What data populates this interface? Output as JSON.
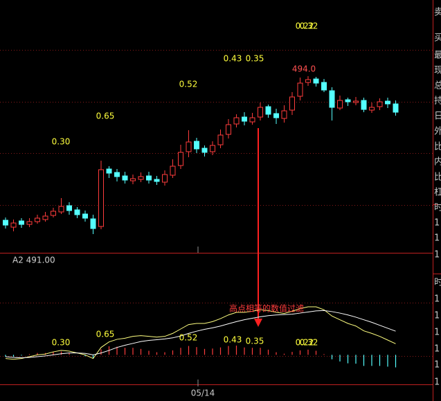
{
  "chart_data": [
    {
      "type": "candlestick",
      "categories": [
        null,
        null,
        null,
        null,
        null,
        null,
        null,
        null,
        null,
        null,
        null,
        null,
        null,
        null,
        null,
        null,
        null,
        null,
        null,
        null,
        null,
        null,
        null,
        null,
        "05/14",
        null,
        null,
        null,
        null,
        null,
        null,
        null,
        null,
        null,
        null,
        null,
        null,
        null,
        null,
        null,
        null,
        null,
        null,
        null,
        null,
        null,
        null,
        null,
        null,
        null
      ],
      "open": [
        473.2,
        472.2,
        473.1,
        472.6,
        473,
        473.3,
        473.9,
        474.4,
        475.3,
        474.7,
        474.1,
        473.4,
        472.3,
        480.6,
        480.1,
        479.6,
        478.9,
        479.1,
        479.6,
        479.1,
        478.7,
        479.7,
        481.1,
        483.1,
        484.6,
        483.6,
        483.1,
        484.1,
        485.6,
        487.1,
        488.1,
        487.4,
        488.1,
        489.6,
        488.6,
        487.9,
        489.1,
        491.1,
        493.1,
        493.6,
        493.1,
        491.9,
        489.4,
        490.6,
        490.2,
        490.5,
        489.1,
        489.6,
        490.4,
        490
      ],
      "high": [
        473.6,
        473.3,
        473.5,
        473.5,
        474,
        474.4,
        475,
        476.4,
        475.8,
        475.1,
        474.6,
        474,
        481.8,
        481,
        480.6,
        480.2,
        479.8,
        480.1,
        480.2,
        479.6,
        480.4,
        482,
        484.1,
        486.2,
        485.1,
        484,
        484.6,
        486.3,
        487.8,
        488.5,
        488.8,
        488.7,
        490.2,
        489.9,
        489.3,
        489.8,
        491.7,
        493.8,
        494,
        493.9,
        493.6,
        492.4,
        491.2,
        490.9,
        491,
        490.9,
        490.2,
        490.8,
        490.9,
        490.5
      ],
      "low": [
        472,
        471.6,
        472.1,
        472.2,
        472.7,
        473,
        473.6,
        474.1,
        474,
        473.5,
        473,
        471.2,
        471.9,
        479.3,
        478.8,
        478.5,
        478.4,
        478.7,
        478.5,
        478.3,
        478.2,
        479.3,
        480.6,
        482.3,
        482.9,
        482.4,
        482.6,
        483.6,
        485,
        486.6,
        486.9,
        487,
        487.6,
        488,
        487.1,
        487.3,
        488.4,
        490.5,
        492.6,
        492.5,
        491.7,
        487.6,
        489.1,
        489.7,
        489.8,
        488.8,
        488.7,
        489.1,
        489.4,
        488.3
      ],
      "close": [
        472.5,
        472.8,
        472.6,
        473,
        473.5,
        473.8,
        474.5,
        475.2,
        474.6,
        474,
        473.5,
        472,
        480.5,
        480,
        479.5,
        479,
        479.2,
        479.5,
        479,
        478.8,
        479.8,
        481,
        483,
        484.5,
        483.5,
        483,
        484,
        485.5,
        487,
        488,
        487.5,
        488,
        489.5,
        488.5,
        488,
        489,
        491,
        493,
        493.5,
        493,
        492,
        489.5,
        490.5,
        490.3,
        490.4,
        489.2,
        489.5,
        490.3,
        490,
        488.8
      ],
      "up_color": "#ff3c3c",
      "down_color": "#54ffff",
      "ylim": [
        468.5,
        505
      ],
      "high_label": "494.0",
      "annotations": [
        "0.30",
        "0.65",
        "0.52",
        "0.43",
        "0.35",
        "0.22",
        "0.32"
      ],
      "annotation_color": "#ffff3c"
    },
    {
      "type": "macd",
      "title": "A2 491.00",
      "series": [
        {
          "color": "#ffff80",
          "values": [
            -0.1,
            -0.12,
            -0.1,
            -0.05,
            0,
            0.02,
            0.08,
            0.12,
            0.1,
            0.05,
            0,
            -0.1,
            0.2,
            0.35,
            0.42,
            0.45,
            0.5,
            0.52,
            0.5,
            0.48,
            0.5,
            0.58,
            0.7,
            0.82,
            0.85,
            0.85,
            0.9,
            0.98,
            1.08,
            1.15,
            1.15,
            1.18,
            1.22,
            1.2,
            1.15,
            1.12,
            1.18,
            1.25,
            1.3,
            1.3,
            1.22,
            1.05,
            0.95,
            0.85,
            0.78,
            0.65,
            0.58,
            0.5,
            0.4,
            0.3
          ]
        },
        {
          "color": "#ffffff",
          "values": [
            -0.05,
            -0.07,
            -0.08,
            -0.07,
            -0.05,
            -0.03,
            0,
            0.03,
            0.05,
            0.05,
            0.04,
            0,
            0.05,
            0.12,
            0.2,
            0.26,
            0.31,
            0.36,
            0.39,
            0.41,
            0.43,
            0.46,
            0.51,
            0.58,
            0.64,
            0.69,
            0.73,
            0.78,
            0.84,
            0.9,
            0.95,
            0.99,
            1.03,
            1.06,
            1.08,
            1.09,
            1.1,
            1.13,
            1.16,
            1.19,
            1.2,
            1.17,
            1.13,
            1.08,
            1.02,
            0.95,
            0.88,
            0.8,
            0.72,
            0.64
          ]
        }
      ],
      "bars": [
        -0.05,
        -0.05,
        -0.02,
        0.02,
        0.05,
        0.05,
        0.08,
        0.09,
        0.05,
        0,
        -0.04,
        -0.1,
        0.15,
        0.23,
        0.22,
        0.19,
        0.19,
        0.16,
        0.11,
        0.07,
        0.07,
        0.12,
        0.19,
        0.24,
        0.21,
        0.16,
        0.17,
        0.2,
        0.24,
        0.25,
        0.2,
        0.19,
        0.19,
        0.14,
        0.07,
        0.03,
        0.08,
        0.12,
        0.14,
        0.11,
        0.02,
        -0.12,
        -0.18,
        -0.23,
        -0.24,
        -0.3,
        -0.3,
        -0.3,
        -0.32,
        -0.34
      ],
      "bar_up_color": "#ff3c3c",
      "bar_down_color": "#54ffff",
      "ylim": [
        -0.8,
        2.2
      ],
      "annotations": [
        "0.30",
        "0.65",
        "0.52",
        "0.43",
        "0.35",
        "0.22",
        "0.32"
      ],
      "annotation_color": "#ffff3c",
      "note": "高点相等的数值过滤",
      "note_color": "#ff3c3c"
    }
  ],
  "sidebar_labels": [
    "卖",
    "买",
    "最",
    "现",
    "总",
    "持",
    "日",
    "外",
    "比",
    "内",
    "比",
    "杠",
    "时",
    "1",
    "1",
    "1",
    "时",
    "1",
    "1",
    "1",
    "1",
    "1",
    "1"
  ]
}
